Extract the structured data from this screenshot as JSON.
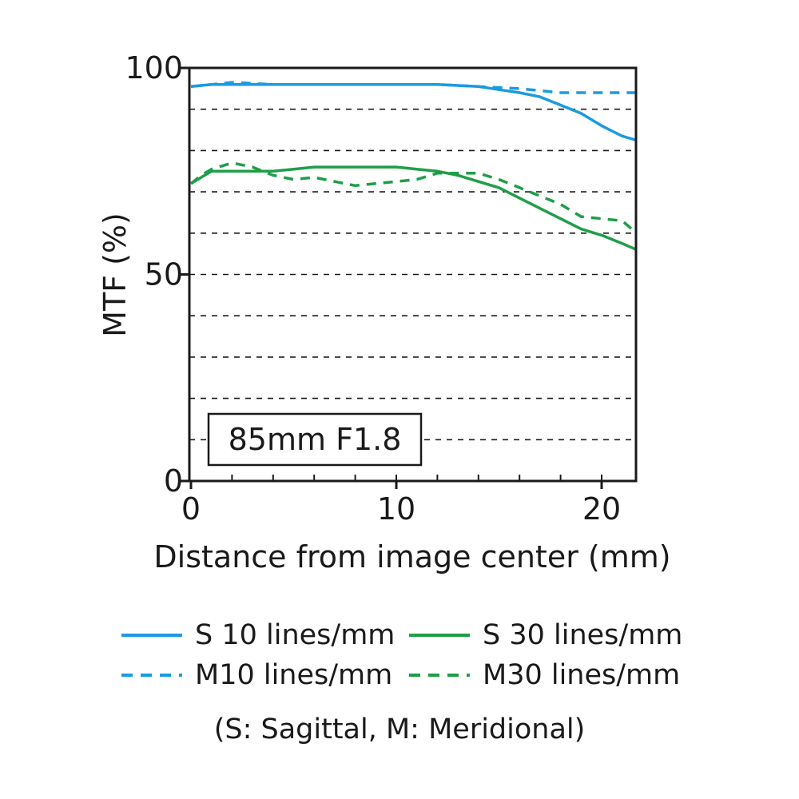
{
  "chart_data": {
    "type": "line",
    "xlabel": "Distance from image center (mm)",
    "ylabel": "MTF (%)",
    "xlim": [
      0,
      21.7
    ],
    "ylim": [
      0,
      100
    ],
    "x_ticks": [
      0,
      10,
      20
    ],
    "y_ticks": [
      0,
      50,
      100
    ],
    "x_minor_step": 2,
    "y_gridlines": [
      10,
      20,
      30,
      40,
      50,
      60,
      70,
      80,
      90
    ],
    "grid": "horizontal dashed",
    "annotation": "85mm F1.8",
    "series": [
      {
        "name": "S 10 lines/mm",
        "color": "#1a9be0",
        "style": "solid",
        "x": [
          0,
          1,
          2,
          4,
          6,
          8,
          10,
          12,
          14,
          16,
          17,
          18,
          19,
          20,
          21,
          21.7
        ],
        "y": [
          95.5,
          96,
          96,
          96,
          96,
          96,
          96,
          96,
          95.5,
          94,
          93,
          91,
          89,
          86,
          83.5,
          82.5
        ]
      },
      {
        "name": "M10 lines/mm",
        "color": "#1a9be0",
        "style": "dashed",
        "x": [
          0,
          1,
          2,
          4,
          6,
          8,
          10,
          12,
          14,
          16,
          17,
          18,
          19,
          20,
          21,
          21.7
        ],
        "y": [
          95.5,
          96,
          96.5,
          96,
          96,
          96,
          96,
          96,
          95.5,
          95,
          94.5,
          94,
          94,
          94,
          94,
          94
        ]
      },
      {
        "name": "S 30 lines/mm",
        "color": "#1f9e48",
        "style": "solid",
        "x": [
          0,
          0.5,
          1,
          2,
          3,
          4,
          5,
          6,
          7,
          8,
          9,
          10,
          11,
          12,
          13,
          14,
          15,
          16,
          17,
          18,
          19,
          20,
          21,
          21.7
        ],
        "y": [
          72,
          73.5,
          75,
          75,
          75,
          75,
          75.5,
          76,
          76,
          76,
          76,
          76,
          75.5,
          75,
          74,
          72.5,
          71,
          68.5,
          66,
          63.5,
          61,
          59.5,
          57.5,
          56
        ]
      },
      {
        "name": "M30 lines/mm",
        "color": "#1f9e48",
        "style": "dashed",
        "x": [
          0,
          0.5,
          1,
          2,
          3,
          4,
          5,
          6,
          7,
          8,
          9,
          10,
          11,
          12,
          13,
          14,
          15,
          16,
          17,
          18,
          19,
          20,
          21,
          21.7
        ],
        "y": [
          72,
          74,
          75.5,
          77,
          76,
          74,
          73,
          73.5,
          72.5,
          71.5,
          72,
          72.5,
          73,
          74.5,
          74.5,
          74.5,
          73,
          71,
          69,
          67,
          64,
          63.5,
          63,
          60
        ]
      }
    ]
  },
  "legend": {
    "s10": "S 10 lines/mm",
    "s30": "S 30 lines/mm",
    "m10": "M10 lines/mm",
    "m30": "M30 lines/mm"
  },
  "note": "(S: Sagittal, M: Meridional)"
}
